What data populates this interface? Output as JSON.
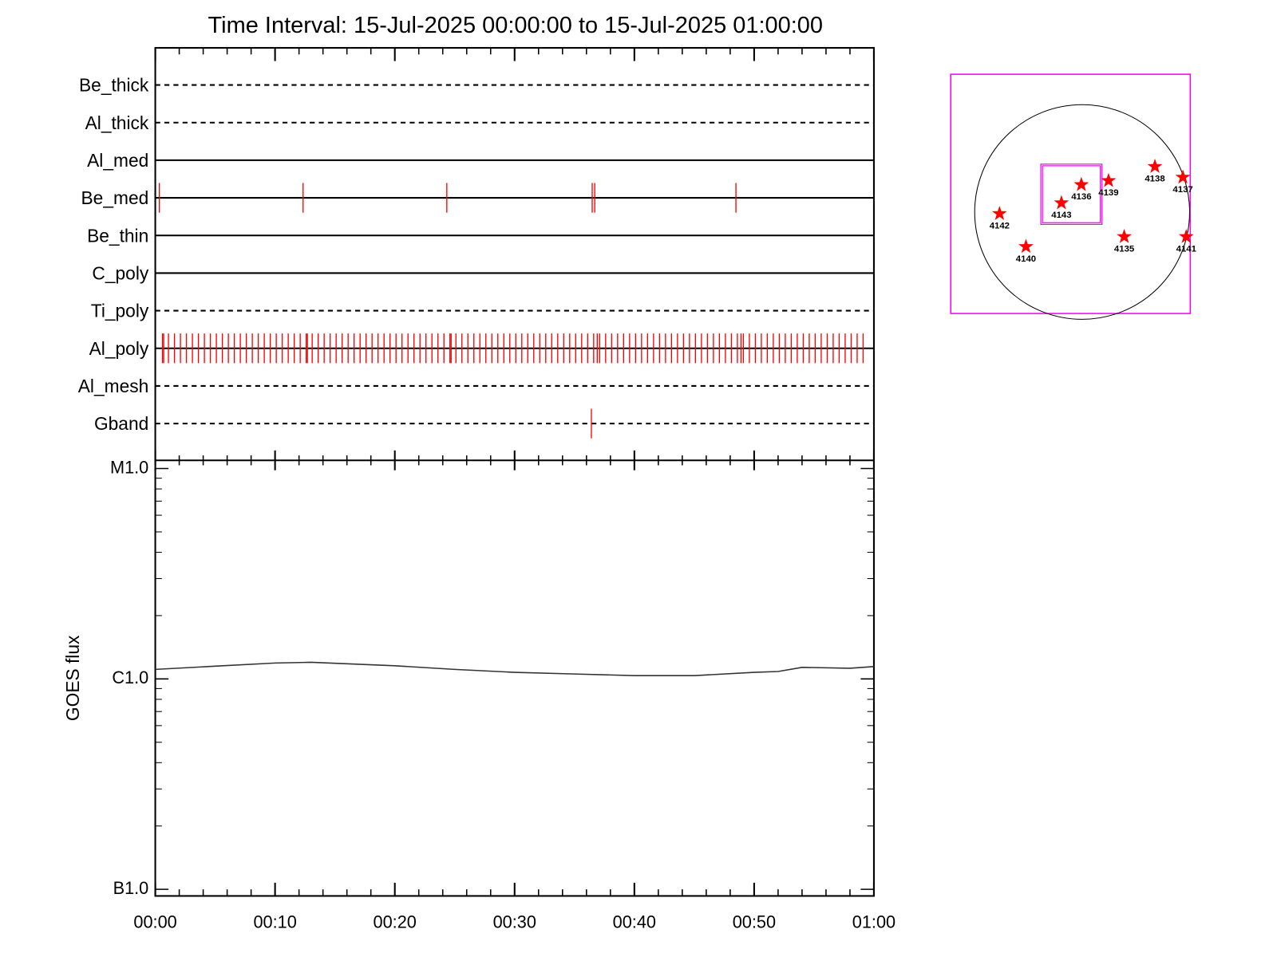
{
  "chart_data": [
    {
      "type": "event",
      "title": "Time Interval: 15-Jul-2025 00:00:00 to 15-Jul-2025 01:00:00",
      "xlim": [
        0,
        60
      ],
      "color": "#ff0000",
      "rows": [
        {
          "name": "Be_thick",
          "style": "dashed",
          "events": []
        },
        {
          "name": "Al_thick",
          "style": "dashed",
          "events": []
        },
        {
          "name": "Al_med",
          "style": "solid",
          "events": []
        },
        {
          "name": "Be_med",
          "style": "solid",
          "events": [
            0.34,
            12.34,
            24.34,
            36.48,
            36.69,
            48.48
          ]
        },
        {
          "name": "Be_thin",
          "style": "solid",
          "events": []
        },
        {
          "name": "C_poly",
          "style": "solid",
          "events": []
        },
        {
          "name": "Ti_poly",
          "style": "dashed",
          "events": []
        },
        {
          "name": "Al_poly",
          "style": "solid",
          "events": [
            0.6,
            0.7,
            1.1,
            1.6,
            2.1,
            2.6,
            3.1,
            3.6,
            4.1,
            4.6,
            5.1,
            5.6,
            6.1,
            6.6,
            7.1,
            7.6,
            8.1,
            8.6,
            9.1,
            9.6,
            10.1,
            10.6,
            11.1,
            11.6,
            12.1,
            12.6,
            12.7,
            13.1,
            13.6,
            14.1,
            14.6,
            15.1,
            15.6,
            16.1,
            16.6,
            17.1,
            17.6,
            18.1,
            18.6,
            19.1,
            19.6,
            20.1,
            20.6,
            21.1,
            21.6,
            22.1,
            22.6,
            23.1,
            23.6,
            24.1,
            24.6,
            24.7,
            25.1,
            25.6,
            26.1,
            26.6,
            27.1,
            27.6,
            28.1,
            28.6,
            29.1,
            29.6,
            30.1,
            30.6,
            31.1,
            31.6,
            32.1,
            32.6,
            33.1,
            33.6,
            34.1,
            34.6,
            35.1,
            35.6,
            36.1,
            36.6,
            36.9,
            37.1,
            37.6,
            38.1,
            38.6,
            39.1,
            39.6,
            40.1,
            40.6,
            41.1,
            41.6,
            42.1,
            42.6,
            43.1,
            43.6,
            44.1,
            44.6,
            45.1,
            45.6,
            46.1,
            46.6,
            47.1,
            47.6,
            48.1,
            48.6,
            48.9,
            49.1,
            49.6,
            50.1,
            50.6,
            51.1,
            51.6,
            52.1,
            52.6,
            53.1,
            53.6,
            54.1,
            54.6,
            55.1,
            55.6,
            56.1,
            56.6,
            57.1,
            57.6,
            58.1,
            58.6,
            59.1
          ]
        },
        {
          "name": "Al_mesh",
          "style": "dashed",
          "events": []
        },
        {
          "name": "Gband",
          "style": "dashed",
          "events": [
            36.41
          ]
        }
      ]
    },
    {
      "type": "line",
      "ylabel": "GOES flux",
      "log": true,
      "color": "#333333",
      "x": [
        0,
        5,
        10,
        13,
        20,
        25,
        30,
        35,
        40,
        45,
        50,
        52,
        54,
        58,
        60
      ],
      "values": [
        1.11e-06,
        1.15e-06,
        1.19e-06,
        1.2e-06,
        1.155e-06,
        1.11e-06,
        1.075e-06,
        1.056e-06,
        1.037e-06,
        1.037e-06,
        1.075e-06,
        1.085e-06,
        1.135e-06,
        1.124e-06,
        1.145e-06
      ],
      "xlim": [
        0,
        60
      ],
      "xticks": [
        {
          "value": 0,
          "label": "00:00"
        },
        {
          "value": 10,
          "label": "00:10"
        },
        {
          "value": 20,
          "label": "00:20"
        },
        {
          "value": 30,
          "label": "00:30"
        },
        {
          "value": 40,
          "label": "00:40"
        },
        {
          "value": 50,
          "label": "00:50"
        },
        {
          "value": 60,
          "label": "01:00"
        }
      ],
      "x_minor_step": 2,
      "ylim": [
        9.3e-08,
        1.094e-05
      ],
      "yticks": [
        {
          "value": 1e-07,
          "label": "B1.0"
        },
        {
          "value": 1e-06,
          "label": "C1.0"
        },
        {
          "value": 1e-05,
          "label": "M1.0"
        }
      ]
    },
    {
      "type": "scatter",
      "color": "#ff0000",
      "frame_color": "#ff00ff",
      "xlim": [
        -1174,
        966
      ],
      "ylim": [
        -908,
        1232
      ],
      "disk_radius": 960,
      "fov": {
        "x": [
          -369,
          177
        ],
        "y": [
          -111,
          428
        ]
      },
      "x": [
        -738,
        -502,
        -185,
        -7,
        236,
        650,
        900,
        376,
        930
      ],
      "values": [
        -15,
        -310,
        81,
        244,
        280,
        406,
        310,
        -221,
        -221
      ],
      "labels": [
        "4142",
        "4140",
        "4143",
        "4136",
        "4139",
        "4138",
        "4137",
        "4135",
        "4141"
      ]
    }
  ]
}
